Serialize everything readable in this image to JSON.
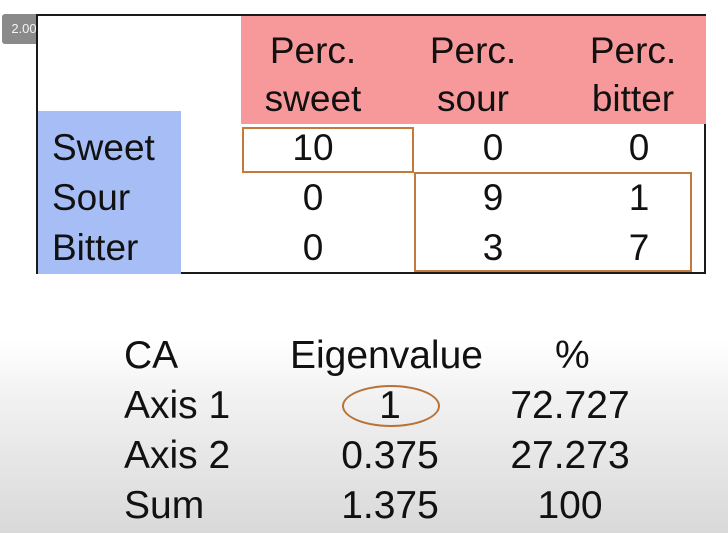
{
  "player": {
    "speed_badge": "2.00"
  },
  "matrix": {
    "headers": [
      {
        "line1": "Perc.",
        "line2": "sweet"
      },
      {
        "line1": "Perc.",
        "line2": "sour"
      },
      {
        "line1": "Perc.",
        "line2": "bitter"
      }
    ],
    "rows": [
      {
        "label": "Sweet",
        "cells": [
          "10",
          "0",
          "0"
        ]
      },
      {
        "label": "Sour",
        "cells": [
          "0",
          "9",
          "1"
        ]
      },
      {
        "label": "Bitter",
        "cells": [
          "0",
          "3",
          "7"
        ]
      }
    ],
    "colors": {
      "header_bg": "#f7999b",
      "row_label_bg": "#a7bdf5",
      "highlight_box": "#c47a3c"
    }
  },
  "eigen": {
    "headers": [
      "CA",
      "Eigenvalue",
      "%"
    ],
    "rows": [
      {
        "label": "Axis 1",
        "eigenvalue": "1",
        "percent": "72.727"
      },
      {
        "label": "Axis 2",
        "eigenvalue": "0.375",
        "percent": "27.273"
      },
      {
        "label": "Sum",
        "eigenvalue": "1.375",
        "percent": "100"
      }
    ]
  }
}
